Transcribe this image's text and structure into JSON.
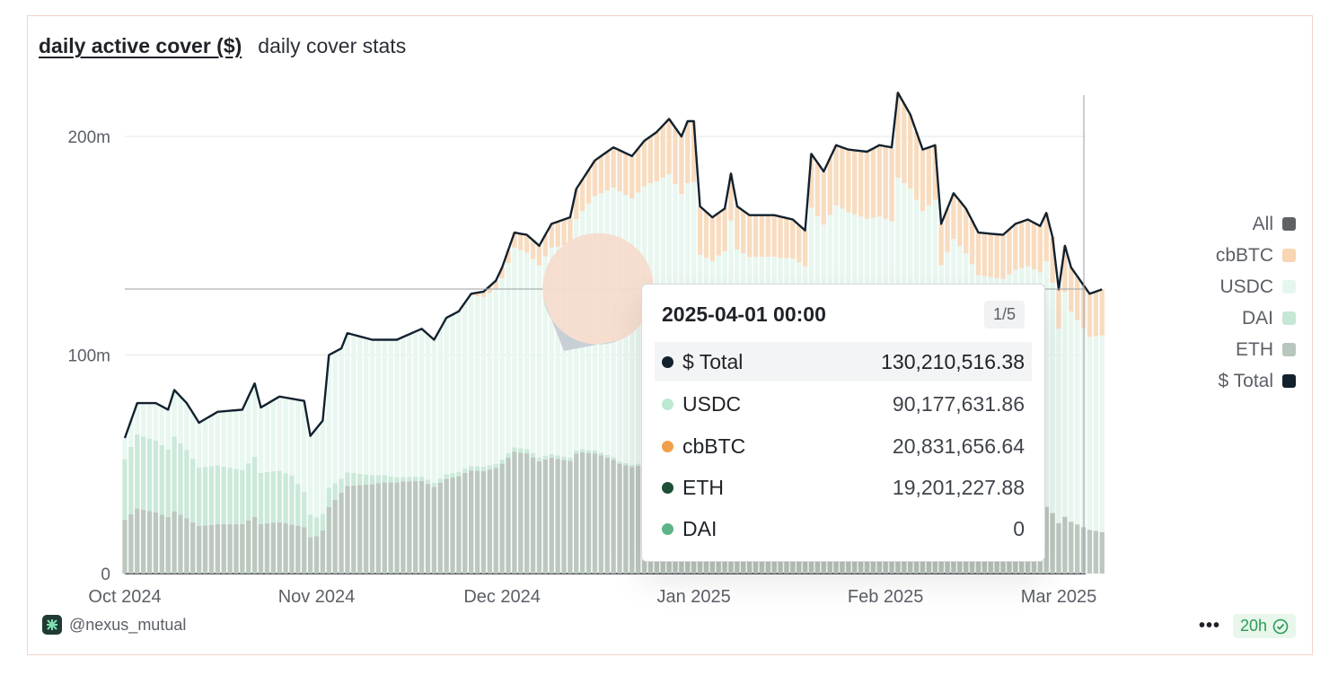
{
  "header": {
    "tab_active": "daily active cover ($)",
    "tab_other": "daily cover stats"
  },
  "legend": {
    "items": [
      {
        "label": "All",
        "color": "#5f6166"
      },
      {
        "label": "cbBTC",
        "color": "#f8d6b4"
      },
      {
        "label": "USDC",
        "color": "#e5f6ee"
      },
      {
        "label": "DAI",
        "color": "#c7e7d6"
      },
      {
        "label": "ETH",
        "color": "#b9c6bd"
      },
      {
        "label": "$ Total",
        "color": "#12212e"
      }
    ]
  },
  "footer": {
    "handle": "@nexus_mutual",
    "more": "•••",
    "refresh": "20h"
  },
  "tooltip": {
    "date": "2025-04-01 00:00",
    "page": "1/5",
    "rows": [
      {
        "label": "$ Total",
        "value": "130,210,516.38",
        "color": "#12212e"
      },
      {
        "label": "USDC",
        "value": "90,177,631.86",
        "color": "#bde9d3"
      },
      {
        "label": "cbBTC",
        "value": "20,831,656.64",
        "color": "#f0a04b"
      },
      {
        "label": "ETH",
        "value": "19,201,227.88",
        "color": "#1f4d36"
      },
      {
        "label": "DAI",
        "value": "0",
        "color": "#5cb487"
      }
    ]
  },
  "chart_data": {
    "type": "bar",
    "stacked": true,
    "x_tick_labels": [
      "Oct 2024",
      "Nov 2024",
      "Dec 2024",
      "Jan 2025",
      "Feb 2025",
      "Mar 2025"
    ],
    "y_tick_labels": [
      "0",
      "100m",
      "200m"
    ],
    "ylim": [
      0,
      220
    ],
    "grid": true,
    "legend_position": "right",
    "x_range": [
      "2024-10-01",
      "2025-03-01"
    ],
    "x_ticks": [
      "2024-10-01",
      "2024-11-01",
      "2024-12-01",
      "2025-01-01",
      "2025-02-01",
      "2025-03-01"
    ],
    "y_ticks": [
      0,
      100,
      200
    ],
    "total_line_keypoints": [
      [
        "2024-10-01",
        62
      ],
      [
        "2024-10-03",
        78
      ],
      [
        "2024-10-06",
        78
      ],
      [
        "2024-10-08",
        75
      ],
      [
        "2024-10-09",
        84
      ],
      [
        "2024-10-11",
        78
      ],
      [
        "2024-10-13",
        69
      ],
      [
        "2024-10-16",
        74
      ],
      [
        "2024-10-20",
        75
      ],
      [
        "2024-10-22",
        87
      ],
      [
        "2024-10-23",
        76
      ],
      [
        "2024-10-26",
        81
      ],
      [
        "2024-10-30",
        79
      ],
      [
        "2024-10-31",
        63
      ],
      [
        "2024-11-02",
        70
      ],
      [
        "2024-11-03",
        100
      ],
      [
        "2024-11-05",
        103
      ],
      [
        "2024-11-06",
        110
      ],
      [
        "2024-11-10",
        107
      ],
      [
        "2024-11-14",
        107
      ],
      [
        "2024-11-18",
        112
      ],
      [
        "2024-11-20",
        107
      ],
      [
        "2024-11-22",
        117
      ],
      [
        "2024-11-24",
        120
      ],
      [
        "2024-11-26",
        128
      ],
      [
        "2024-11-28",
        129
      ],
      [
        "2024-11-30",
        134
      ],
      [
        "2024-12-01",
        140
      ],
      [
        "2024-12-03",
        156
      ],
      [
        "2024-12-05",
        155
      ],
      [
        "2024-12-07",
        150
      ],
      [
        "2024-12-09",
        160
      ],
      [
        "2024-12-12",
        163
      ],
      [
        "2024-12-13",
        176
      ],
      [
        "2024-12-16",
        189
      ],
      [
        "2024-12-19",
        195
      ],
      [
        "2024-12-22",
        191
      ],
      [
        "2024-12-24",
        198
      ],
      [
        "2024-12-26",
        202
      ],
      [
        "2024-12-28",
        208
      ],
      [
        "2024-12-30",
        200
      ],
      [
        "2024-12-31",
        207
      ],
      [
        "2025-01-01",
        207
      ],
      [
        "2025-01-02",
        168
      ],
      [
        "2025-01-04",
        163
      ],
      [
        "2025-01-06",
        167
      ],
      [
        "2025-01-07",
        183
      ],
      [
        "2025-01-08",
        168
      ],
      [
        "2025-01-10",
        164
      ],
      [
        "2025-01-14",
        164
      ],
      [
        "2025-01-17",
        162
      ],
      [
        "2025-01-19",
        157
      ],
      [
        "2025-01-20",
        192
      ],
      [
        "2025-01-22",
        184
      ],
      [
        "2025-01-24",
        196
      ],
      [
        "2025-01-26",
        194
      ],
      [
        "2025-01-29",
        193
      ],
      [
        "2025-01-31",
        196
      ],
      [
        "2025-02-02",
        195
      ],
      [
        "2025-02-03",
        220
      ],
      [
        "2025-02-05",
        210
      ],
      [
        "2025-02-07",
        194
      ],
      [
        "2025-02-09",
        196
      ],
      [
        "2025-02-10",
        160
      ],
      [
        "2025-02-12",
        174
      ],
      [
        "2025-02-14",
        167
      ],
      [
        "2025-02-16",
        156
      ],
      [
        "2025-02-20",
        155
      ],
      [
        "2025-02-22",
        160
      ],
      [
        "2025-02-24",
        162
      ],
      [
        "2025-02-26",
        159
      ],
      [
        "2025-02-27",
        165
      ],
      [
        "2025-02-28",
        154
      ],
      [
        "2025-03-01",
        130
      ],
      [
        "2025-03-02",
        150
      ],
      [
        "2025-03-03",
        140
      ],
      [
        "2025-03-06",
        128
      ],
      [
        "2025-03-08",
        130
      ]
    ],
    "series": [
      {
        "name": "ETH",
        "values_keypoints": [
          [
            "2024-10-01",
            25
          ],
          [
            "2024-10-15",
            22
          ],
          [
            "2024-10-25",
            22
          ],
          [
            "2024-11-01",
            20
          ],
          [
            "2024-11-05",
            35
          ],
          [
            "2024-11-12",
            41
          ],
          [
            "2024-11-20",
            42
          ],
          [
            "2024-11-28",
            48
          ],
          [
            "2024-12-05",
            55
          ],
          [
            "2024-12-14",
            55
          ],
          [
            "2024-12-20",
            48
          ],
          [
            "2024-12-28",
            50
          ],
          [
            "2025-01-05",
            50
          ],
          [
            "2025-01-15",
            47
          ],
          [
            "2025-01-25",
            44
          ],
          [
            "2025-02-05",
            40
          ],
          [
            "2025-02-15",
            36
          ],
          [
            "2025-02-25",
            32
          ],
          [
            "2025-03-01",
            28
          ],
          [
            "2025-03-08",
            19
          ]
        ]
      },
      {
        "name": "DAI",
        "values_keypoints": [
          [
            "2024-10-01",
            28
          ],
          [
            "2024-10-12",
            28
          ],
          [
            "2024-10-20",
            24
          ],
          [
            "2024-10-28",
            21
          ],
          [
            "2024-11-01",
            10
          ],
          [
            "2024-11-05",
            6
          ],
          [
            "2024-11-15",
            2
          ],
          [
            "2024-11-25",
            2
          ],
          [
            "2024-12-05",
            2
          ],
          [
            "2024-12-20",
            1
          ],
          [
            "2025-01-15",
            1
          ],
          [
            "2025-02-15",
            1
          ],
          [
            "2025-03-08",
            0
          ]
        ]
      },
      {
        "name": "USDC",
        "values_keypoints": [
          [
            "2024-10-01",
            10
          ],
          [
            "2024-10-15",
            23
          ],
          [
            "2024-10-28",
            33
          ],
          [
            "2024-11-03",
            55
          ],
          [
            "2024-11-15",
            63
          ],
          [
            "2024-11-27",
            78
          ],
          [
            "2024-12-05",
            90
          ],
          [
            "2024-12-15",
            110
          ],
          [
            "2024-12-25",
            126
          ],
          [
            "2025-01-02",
            100
          ],
          [
            "2025-01-15",
            94
          ],
          [
            "2025-01-22",
            116
          ],
          [
            "2025-02-03",
            121
          ],
          [
            "2025-02-10",
            118
          ],
          [
            "2025-02-20",
            109
          ],
          [
            "2025-02-28",
            111
          ],
          [
            "2025-03-08",
            90
          ]
        ]
      },
      {
        "name": "cbBTC",
        "values_keypoints": [
          [
            "2024-10-01",
            0
          ],
          [
            "2024-11-25",
            0
          ],
          [
            "2024-12-01",
            5
          ],
          [
            "2024-12-10",
            12
          ],
          [
            "2024-12-20",
            18
          ],
          [
            "2024-12-31",
            25
          ],
          [
            "2025-01-05",
            20
          ],
          [
            "2025-01-19",
            18
          ],
          [
            "2025-01-20",
            23
          ],
          [
            "2025-02-03",
            35
          ],
          [
            "2025-02-10",
            21
          ],
          [
            "2025-02-28",
            22
          ],
          [
            "2025-03-08",
            21
          ]
        ]
      }
    ],
    "inset_pie": {
      "slices": [
        {
          "name": "cbBTC",
          "value": 72,
          "color": "#f5dccd"
        },
        {
          "name": "ETH",
          "value": 28,
          "color": "#c5cfd6"
        }
      ]
    }
  }
}
